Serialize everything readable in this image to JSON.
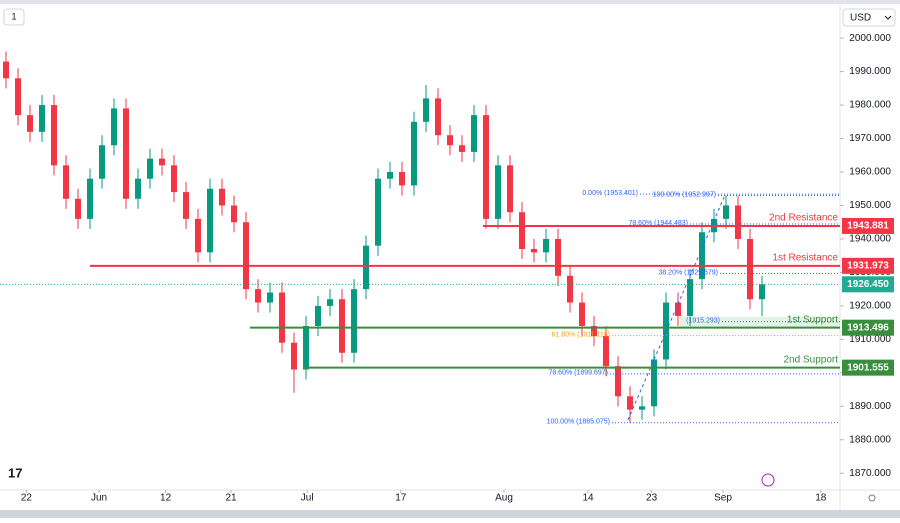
{
  "toolbar": {
    "interval": "1",
    "currency": "USD"
  },
  "chart_data": {
    "type": "candlestick",
    "up_color": "#089981",
    "down_color": "#f23645",
    "x": [
      0.5,
      1.5,
      2.5,
      3.5,
      4.5,
      5.5,
      6.5,
      7.5,
      8.5,
      9.5,
      10.5,
      11.5,
      12.5,
      13.5,
      14.5,
      15.5,
      16.5,
      17.5,
      18.5,
      19.5,
      20.5,
      21.5,
      22.5,
      23.5,
      24.5,
      25.5,
      26.5,
      27.5,
      28.5,
      29.5,
      30.5,
      31.5,
      32.5,
      33.5,
      34.5,
      35.5,
      36.5,
      37.5,
      38.5,
      39.5,
      40.5,
      41.5,
      42.5,
      43.5,
      44.5,
      45.5,
      46.5,
      47.5,
      48.5,
      49.5,
      50.5,
      51.5,
      52.5,
      53.5,
      54.5,
      55.5,
      56.5,
      57.5,
      58.5,
      59.5,
      60.5,
      61.5,
      62.5,
      63.5
    ],
    "open": [
      1993,
      1988,
      1977,
      1972,
      1980,
      1962,
      1952,
      1946,
      1958,
      1968,
      1979,
      1952,
      1958,
      1964,
      1962,
      1954,
      1946,
      1936,
      1955,
      1950,
      1945,
      1925,
      1921,
      1924,
      1909,
      1901,
      1914,
      1920,
      1922,
      1906,
      1925,
      1938,
      1958,
      1960,
      1956,
      1975,
      1982,
      1971,
      1968,
      1966,
      1977,
      1946,
      1962,
      1948,
      1937,
      1936,
      1940,
      1929,
      1921,
      1914,
      1911,
      1902,
      1893,
      1889,
      1890,
      1904,
      1921,
      1917,
      1928,
      1942,
      1946,
      1950,
      1940,
      1922
    ],
    "high": [
      1996,
      1991,
      1980,
      1983,
      1983,
      1965,
      1955,
      1961,
      1971,
      1982,
      1982,
      1961,
      1967,
      1967,
      1965,
      1957,
      1949,
      1958,
      1958,
      1953,
      1948,
      1928,
      1927,
      1927,
      1912,
      1917,
      1923,
      1925,
      1925,
      1928,
      1941,
      1961,
      1963,
      1963,
      1978,
      1986,
      1985,
      1974,
      1971,
      1980,
      1980,
      1965,
      1965,
      1951,
      1940,
      1943,
      1943,
      1932,
      1924,
      1917,
      1914,
      1905,
      1896,
      1893,
      1907,
      1924,
      1924,
      1931,
      1945,
      1949,
      1953,
      1953,
      1943,
      1929
    ],
    "low": [
      1985,
      1974,
      1969,
      1969,
      1959,
      1949,
      1943,
      1943,
      1955,
      1965,
      1949,
      1949,
      1955,
      1959,
      1951,
      1943,
      1933,
      1933,
      1947,
      1942,
      1922,
      1918,
      1918,
      1906,
      1894,
      1898,
      1911,
      1917,
      1903,
      1903,
      1922,
      1935,
      1955,
      1953,
      1953,
      1972,
      1968,
      1965,
      1963,
      1963,
      1943,
      1943,
      1945,
      1934,
      1933,
      1933,
      1926,
      1918,
      1911,
      1908,
      1899,
      1890,
      1885,
      1886,
      1887,
      1901,
      1914,
      1914,
      1925,
      1939,
      1943,
      1937,
      1919,
      1917
    ],
    "close": [
      1988,
      1977,
      1972,
      1980,
      1962,
      1952,
      1946,
      1958,
      1968,
      1979,
      1952,
      1958,
      1964,
      1962,
      1954,
      1946,
      1936,
      1955,
      1950,
      1945,
      1925,
      1921,
      1924,
      1909,
      1901,
      1914,
      1920,
      1922,
      1906,
      1925,
      1938,
      1958,
      1960,
      1956,
      1975,
      1982,
      1971,
      1968,
      1966,
      1977,
      1946,
      1962,
      1948,
      1937,
      1936,
      1940,
      1929,
      1921,
      1914,
      1911,
      1902,
      1893,
      1889,
      1890,
      1904,
      1921,
      1917,
      1928,
      1942,
      1946,
      1950,
      1940,
      1922,
      1926.45
    ],
    "xlim": [
      0,
      70
    ],
    "xticks": [
      {
        "value": 2.2,
        "label": "22"
      },
      {
        "value": 8.25,
        "label": "Jun"
      },
      {
        "value": 13.8,
        "label": "12"
      },
      {
        "value": 19.25,
        "label": "21"
      },
      {
        "value": 25.6,
        "label": "Jul"
      },
      {
        "value": 33.4,
        "label": "17"
      },
      {
        "value": 42,
        "label": "Aug"
      },
      {
        "value": 49,
        "label": "14"
      },
      {
        "value": 54.3,
        "label": "23"
      },
      {
        "value": 60.25,
        "label": "Sep"
      },
      {
        "value": 68.4,
        "label": "18"
      }
    ],
    "ylim": [
      1865,
      2009
    ],
    "yticks": [
      {
        "value": 1870,
        "label": "1870.000"
      },
      {
        "value": 1880,
        "label": "1880.000"
      },
      {
        "value": 1890,
        "label": "1890.000"
      },
      {
        "value": 1900,
        "label": "1900.000"
      },
      {
        "value": 1910,
        "label": "1910.000"
      },
      {
        "value": 1920,
        "label": "1920.000"
      },
      {
        "value": 1930,
        "label": "1930.000"
      },
      {
        "value": 1940,
        "label": "1940.000"
      },
      {
        "value": 1950,
        "label": "1950.000"
      },
      {
        "value": 1960,
        "label": "1960.000"
      },
      {
        "value": 1970,
        "label": "1970.000"
      },
      {
        "value": 1980,
        "label": "1980.000"
      },
      {
        "value": 1990,
        "label": "1990.000"
      },
      {
        "value": 2000,
        "label": "2000.000"
      }
    ],
    "levels": [
      {
        "name": "2nd Resistance",
        "value": 1943.881,
        "color": "#f23645"
      },
      {
        "name": "1st Resistance",
        "value": 1931.973,
        "color": "#f23645"
      },
      {
        "name": "1st Support",
        "value": 1913.496,
        "color": "#388e3c"
      },
      {
        "name": "2nd Support",
        "value": 1901.555,
        "color": "#388e3c"
      }
    ],
    "last_price": {
      "value": 1926.45,
      "label": "1926.450",
      "color": "#22ab94"
    },
    "fibs": [
      {
        "value": 1953.401,
        "label": "0.00% (1953.401)",
        "color": "#2962ff"
      },
      {
        "value": 1952.997,
        "label": "100.00% (1952.997)",
        "color": "#2962ff"
      },
      {
        "value": 1944.483,
        "label": "78.60% (1944.483)",
        "color": "#2962ff"
      },
      {
        "value": 1929.679,
        "label": "38.20% (1929.679)",
        "color": "#2962ff"
      },
      {
        "value": 1915.293,
        "label": "(1915.293)",
        "color": "#2962ff"
      },
      {
        "value": 1911.116,
        "label": "61.80% (1911.116)",
        "color": "#f7a21b"
      },
      {
        "value": 1899.697,
        "label": "78.60% (1899.697)",
        "color": "#2962ff"
      },
      {
        "value": 1885.075,
        "label": "100.00% (1885.075)",
        "color": "#2962ff"
      }
    ]
  }
}
